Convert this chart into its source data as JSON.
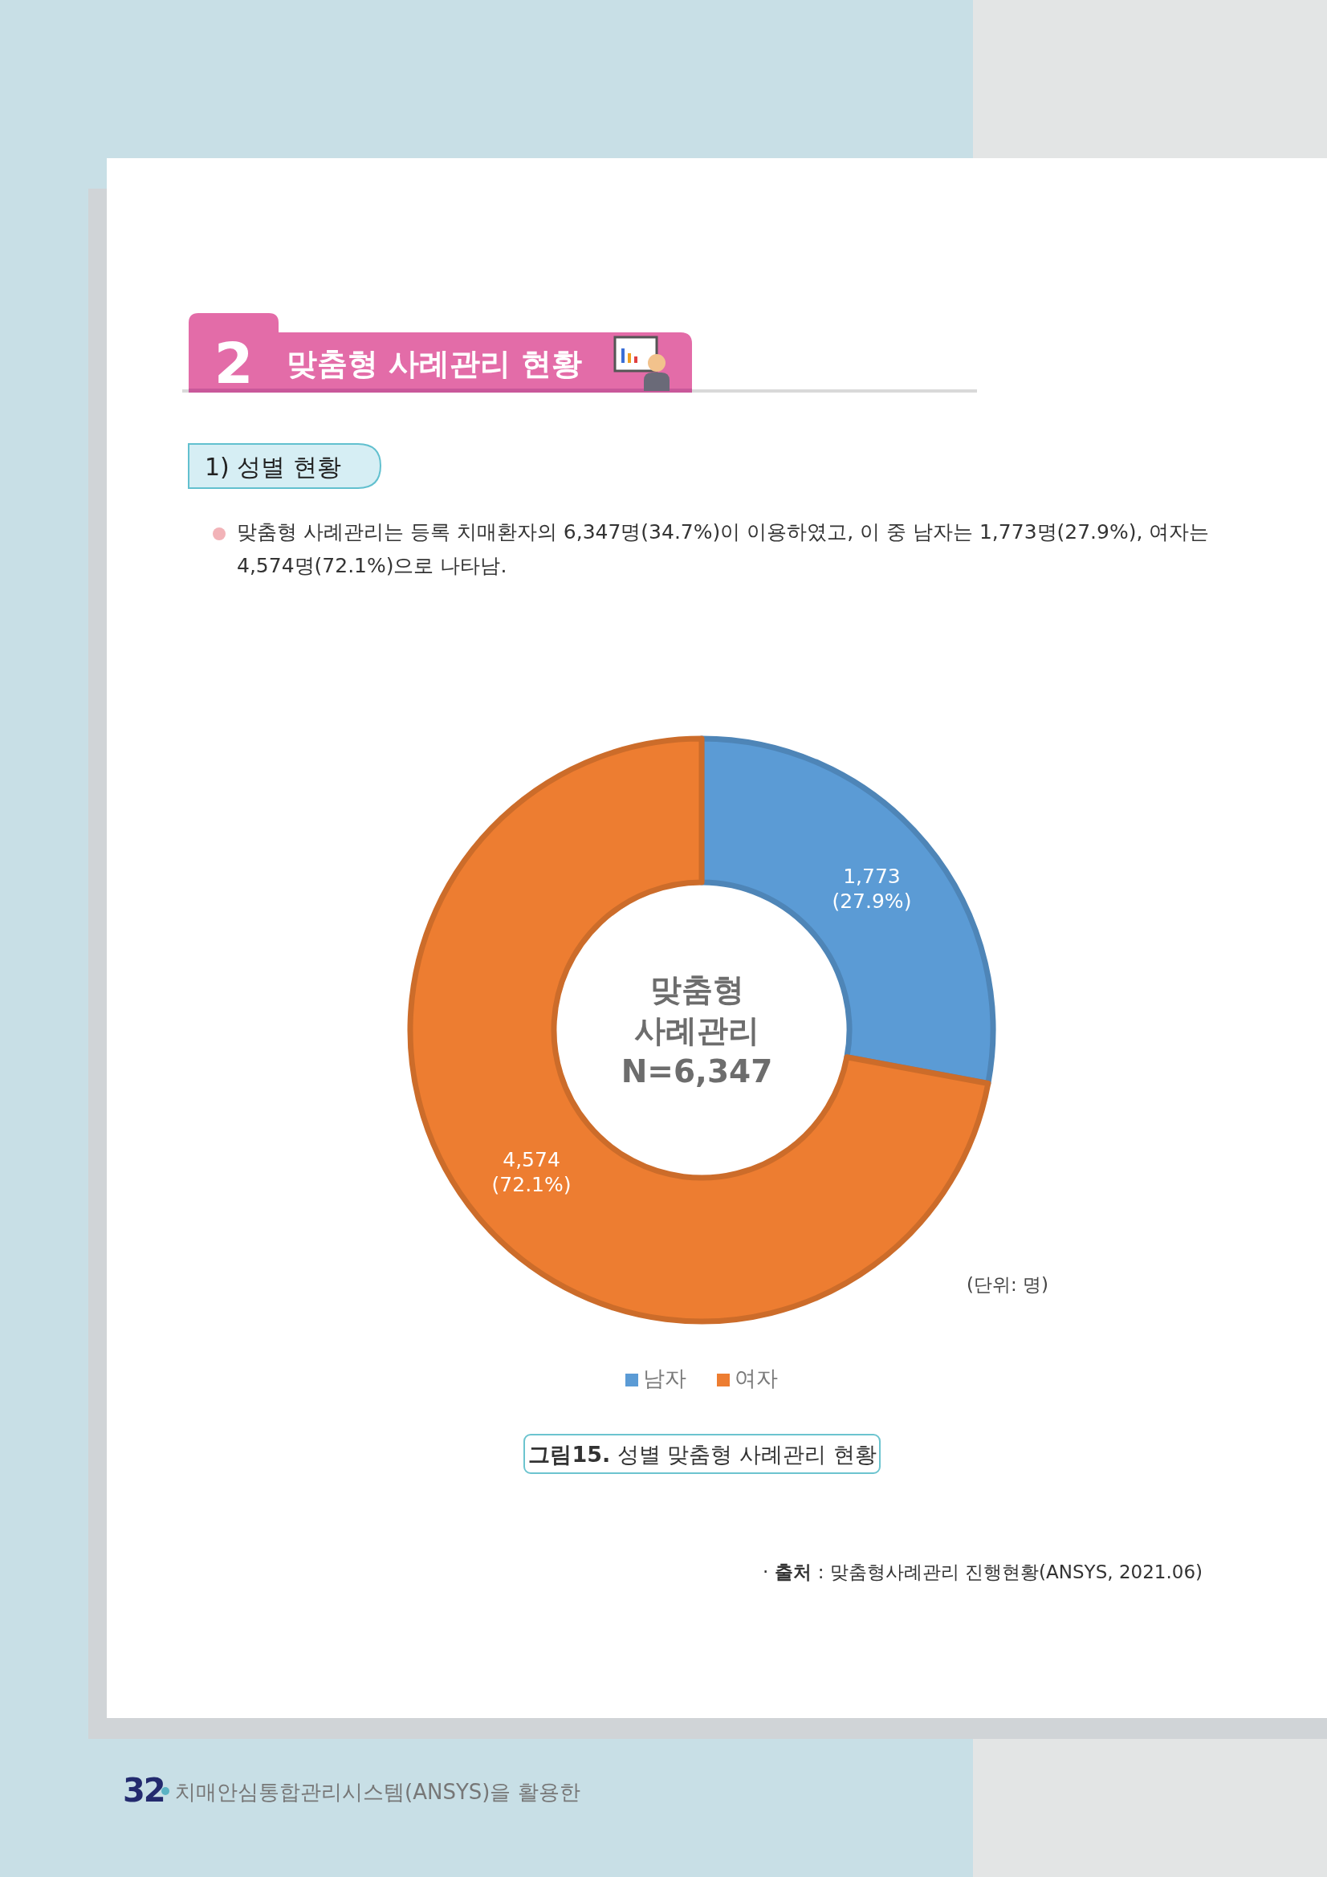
{
  "chart_data": {
    "type": "donut",
    "title": "맞춤형 사례관리 현황",
    "subtitle": "1) 성별 현황",
    "categories": [
      "남자",
      "여자"
    ],
    "values": [
      1773,
      4574
    ],
    "colors": [
      "#5b9bd5",
      "#ed7d31"
    ],
    "value_labels": [
      "1,773\n(27.9%)",
      "4,574\n(72.1%)"
    ],
    "legend": "bottom",
    "annotations": [
      "2",
      "맞춤형 사례관리는 등록 치매환자의 6,347명(34.7%)이 이용하였고, 이 중 남자는 1,773명(27.9%), 여자는 4,574명(72.1%)으로 나타남.",
      "맞춤형\n사례관리\nN=6,347",
      "(단위: 명)",
      "그림15. 성별 맞춤형 사례관리 현황",
      "· 출처 : 맞춤형사례관리 진행현황(ANSYS, 2021.06)",
      "32",
      "치매안심통합관리시스템(ANSYS)을 활용한"
    ]
  }
}
